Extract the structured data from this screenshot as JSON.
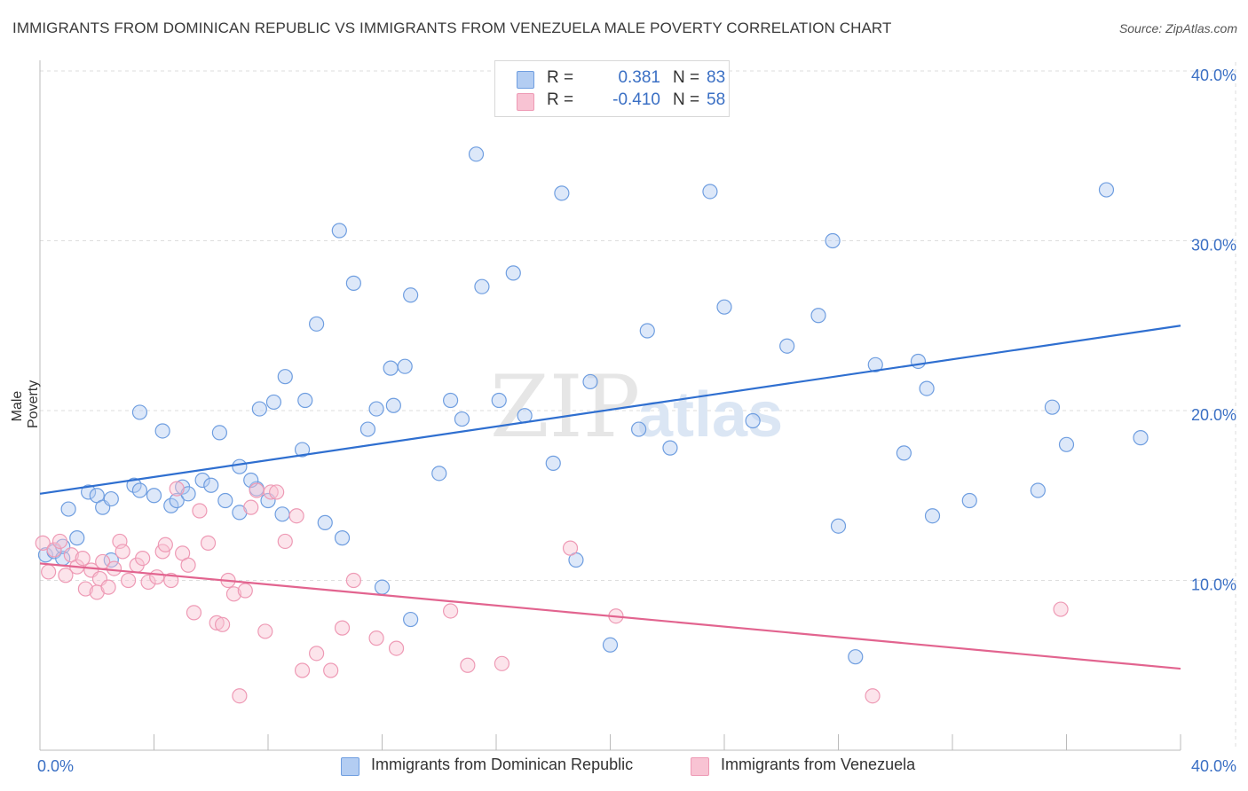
{
  "header": {
    "title": "IMMIGRANTS FROM DOMINICAN REPUBLIC VS IMMIGRANTS FROM VENEZUELA MALE POVERTY CORRELATION CHART",
    "source": "Source: ZipAtlas.com"
  },
  "stats": {
    "series1": {
      "r_label": "R =",
      "r_value": "0.381",
      "n_label": "N =",
      "n_value": "83"
    },
    "series2": {
      "r_label": "R =",
      "r_value": "-0.410",
      "n_label": "N =",
      "n_value": "58"
    }
  },
  "legend": {
    "series1": "Immigrants from Dominican Republic",
    "series2": "Immigrants from Venezuela"
  },
  "colors": {
    "blue_stroke": "#6f9ee0",
    "blue_fill": "#b3cdf2",
    "blue_line": "#2f6fd0",
    "pink_stroke": "#ee9ab5",
    "pink_fill": "#f8c3d3",
    "pink_line": "#e2648f",
    "axis_text": "#3a6fc4",
    "grid": "#dddddd"
  },
  "chart_data": {
    "type": "scatter",
    "title": "IMMIGRANTS FROM DOMINICAN REPUBLIC VS IMMIGRANTS FROM VENEZUELA MALE POVERTY CORRELATION CHART",
    "xlabel": "",
    "ylabel": "Male Poverty",
    "xlim": [
      0,
      40
    ],
    "ylim": [
      0,
      40
    ],
    "x_tick_labels": [
      {
        "value": 0,
        "label": "0.0%"
      },
      {
        "value": 40,
        "label": "40.0%"
      }
    ],
    "y_tick_labels": [
      {
        "value": 10,
        "label": "10.0%"
      },
      {
        "value": 20,
        "label": "20.0%"
      },
      {
        "value": 30,
        "label": "30.0%"
      },
      {
        "value": 40,
        "label": "40.0%"
      }
    ],
    "watermark": {
      "zip": "ZIP",
      "atlas": "atlas"
    },
    "series": [
      {
        "name": "Immigrants from Dominican Republic",
        "color": "#6f9ee0",
        "trend": {
          "x": [
            0,
            40
          ],
          "y": [
            15.1,
            25.0
          ]
        },
        "points": [
          [
            0.2,
            11.5
          ],
          [
            0.5,
            11.7
          ],
          [
            0.8,
            11.3
          ],
          [
            1.0,
            14.2
          ],
          [
            1.7,
            15.2
          ],
          [
            2.0,
            15.0
          ],
          [
            2.2,
            14.3
          ],
          [
            2.5,
            14.8
          ],
          [
            3.3,
            15.6
          ],
          [
            3.5,
            15.3
          ],
          [
            4.0,
            15.0
          ],
          [
            4.6,
            14.4
          ],
          [
            4.8,
            14.7
          ],
          [
            5.0,
            15.5
          ],
          [
            5.2,
            15.1
          ],
          [
            5.7,
            15.9
          ],
          [
            6.0,
            15.6
          ],
          [
            6.5,
            14.7
          ],
          [
            7.0,
            14.0
          ],
          [
            7.6,
            15.4
          ],
          [
            8.0,
            14.7
          ],
          [
            8.5,
            13.9
          ],
          [
            0.8,
            12.0
          ],
          [
            1.3,
            12.5
          ],
          [
            2.5,
            11.2
          ],
          [
            3.5,
            19.9
          ],
          [
            4.3,
            18.8
          ],
          [
            6.3,
            18.7
          ],
          [
            7.0,
            16.7
          ],
          [
            7.4,
            15.9
          ],
          [
            7.7,
            20.1
          ],
          [
            8.2,
            20.5
          ],
          [
            8.6,
            22.0
          ],
          [
            9.2,
            17.7
          ],
          [
            9.3,
            20.6
          ],
          [
            9.7,
            25.1
          ],
          [
            10.0,
            13.4
          ],
          [
            10.5,
            30.6
          ],
          [
            10.6,
            12.5
          ],
          [
            11.0,
            27.5
          ],
          [
            11.5,
            18.9
          ],
          [
            11.8,
            20.1
          ],
          [
            12.0,
            9.6
          ],
          [
            12.3,
            22.5
          ],
          [
            12.4,
            20.3
          ],
          [
            12.8,
            22.6
          ],
          [
            13.0,
            26.8
          ],
          [
            14.0,
            16.3
          ],
          [
            14.4,
            20.6
          ],
          [
            14.8,
            19.5
          ],
          [
            15.3,
            35.1
          ],
          [
            15.5,
            27.3
          ],
          [
            16.1,
            20.6
          ],
          [
            16.6,
            28.1
          ],
          [
            17.0,
            19.7
          ],
          [
            18.0,
            16.9
          ],
          [
            18.3,
            32.8
          ],
          [
            18.8,
            11.2
          ],
          [
            19.3,
            21.7
          ],
          [
            20.0,
            6.2
          ],
          [
            21.0,
            18.9
          ],
          [
            21.3,
            24.7
          ],
          [
            22.1,
            17.8
          ],
          [
            23.5,
            32.9
          ],
          [
            24.0,
            26.1
          ],
          [
            25.0,
            19.4
          ],
          [
            26.2,
            23.8
          ],
          [
            27.3,
            25.6
          ],
          [
            27.8,
            30.0
          ],
          [
            28.0,
            13.2
          ],
          [
            28.6,
            5.5
          ],
          [
            29.3,
            22.7
          ],
          [
            30.3,
            17.5
          ],
          [
            30.8,
            22.9
          ],
          [
            31.1,
            21.3
          ],
          [
            31.3,
            13.8
          ],
          [
            32.6,
            14.7
          ],
          [
            35.0,
            15.3
          ],
          [
            35.5,
            20.2
          ],
          [
            36.0,
            18.0
          ],
          [
            37.4,
            33.0
          ],
          [
            38.6,
            18.4
          ],
          [
            13.0,
            7.7
          ]
        ]
      },
      {
        "name": "Immigrants from Venezuela",
        "color": "#ee9ab5",
        "trend": {
          "x": [
            0,
            40
          ],
          "y": [
            11.0,
            4.8
          ]
        },
        "points": [
          [
            0.1,
            12.2
          ],
          [
            0.3,
            10.5
          ],
          [
            0.5,
            11.8
          ],
          [
            0.7,
            12.3
          ],
          [
            0.9,
            10.3
          ],
          [
            1.1,
            11.5
          ],
          [
            1.3,
            10.8
          ],
          [
            1.5,
            11.3
          ],
          [
            1.6,
            9.5
          ],
          [
            1.8,
            10.6
          ],
          [
            2.0,
            9.3
          ],
          [
            2.1,
            10.1
          ],
          [
            2.2,
            11.1
          ],
          [
            2.4,
            9.6
          ],
          [
            2.6,
            10.7
          ],
          [
            2.8,
            12.3
          ],
          [
            2.9,
            11.7
          ],
          [
            3.1,
            10.0
          ],
          [
            3.4,
            10.9
          ],
          [
            3.6,
            11.3
          ],
          [
            3.8,
            9.9
          ],
          [
            4.1,
            10.2
          ],
          [
            4.3,
            11.7
          ],
          [
            4.4,
            12.1
          ],
          [
            4.6,
            10.0
          ],
          [
            4.8,
            15.4
          ],
          [
            5.0,
            11.6
          ],
          [
            5.2,
            10.9
          ],
          [
            5.4,
            8.1
          ],
          [
            5.6,
            14.1
          ],
          [
            5.9,
            12.2
          ],
          [
            6.2,
            7.5
          ],
          [
            6.4,
            7.4
          ],
          [
            6.6,
            10.0
          ],
          [
            6.8,
            9.2
          ],
          [
            7.0,
            3.2
          ],
          [
            7.2,
            9.4
          ],
          [
            7.4,
            14.3
          ],
          [
            7.6,
            15.3
          ],
          [
            7.9,
            7.0
          ],
          [
            8.1,
            15.2
          ],
          [
            8.3,
            15.2
          ],
          [
            8.6,
            12.3
          ],
          [
            9.0,
            13.8
          ],
          [
            9.2,
            4.7
          ],
          [
            9.7,
            5.7
          ],
          [
            10.2,
            4.7
          ],
          [
            10.6,
            7.2
          ],
          [
            11.0,
            10.0
          ],
          [
            11.8,
            6.6
          ],
          [
            12.5,
            6.0
          ],
          [
            14.4,
            8.2
          ],
          [
            15.0,
            5.0
          ],
          [
            16.2,
            5.1
          ],
          [
            18.6,
            11.9
          ],
          [
            20.2,
            7.9
          ],
          [
            29.2,
            3.2
          ],
          [
            35.8,
            8.3
          ]
        ]
      }
    ]
  }
}
